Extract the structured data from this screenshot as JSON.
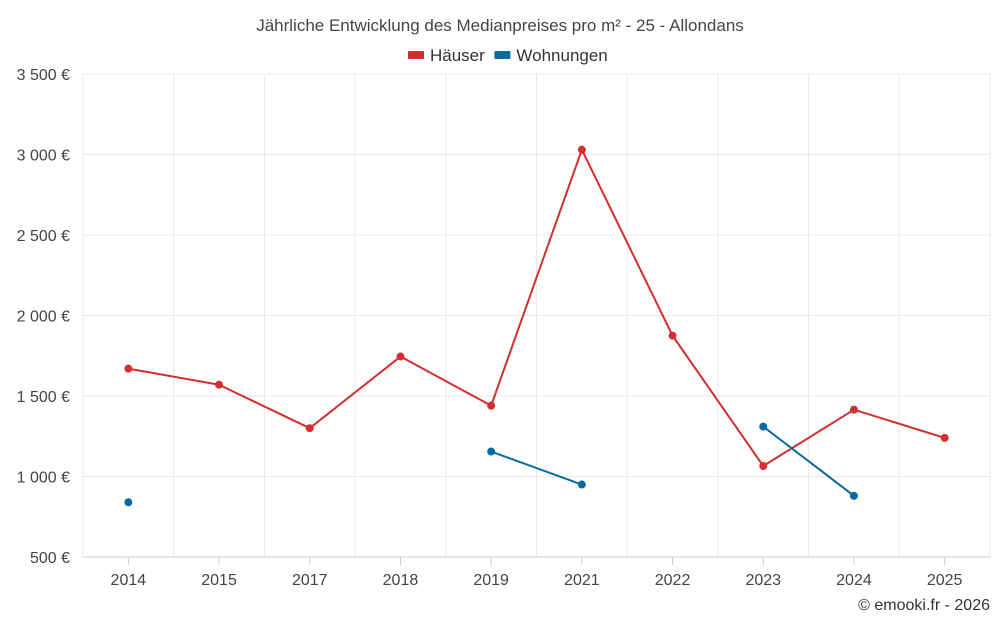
{
  "chart_data": {
    "type": "line",
    "title": "Jährliche Entwicklung des Medianpreises pro m² - 25 - Allondans",
    "categories": [
      "2014",
      "2015",
      "2017",
      "2018",
      "2019",
      "2021",
      "2022",
      "2023",
      "2024",
      "2025"
    ],
    "y_ticks": [
      "500 €",
      "1 000 €",
      "1 500 €",
      "2 000 €",
      "2 500 €",
      "3 000 €",
      "3 500 €"
    ],
    "y_tick_values": [
      500,
      1000,
      1500,
      2000,
      2500,
      3000,
      3500
    ],
    "ylim": [
      500,
      3500
    ],
    "grid": true,
    "legend_position": "top-center",
    "series": [
      {
        "name": "Häuser",
        "color": "#d32f2f",
        "values": [
          1670,
          1570,
          1300,
          1745,
          1440,
          3030,
          1875,
          1065,
          1415,
          1240
        ]
      },
      {
        "name": "Wohnungen",
        "color": "#0a6aa1",
        "values": [
          840,
          null,
          null,
          null,
          1155,
          950,
          null,
          1310,
          880,
          null
        ]
      }
    ],
    "credit": "© emooki.fr - 2026"
  }
}
